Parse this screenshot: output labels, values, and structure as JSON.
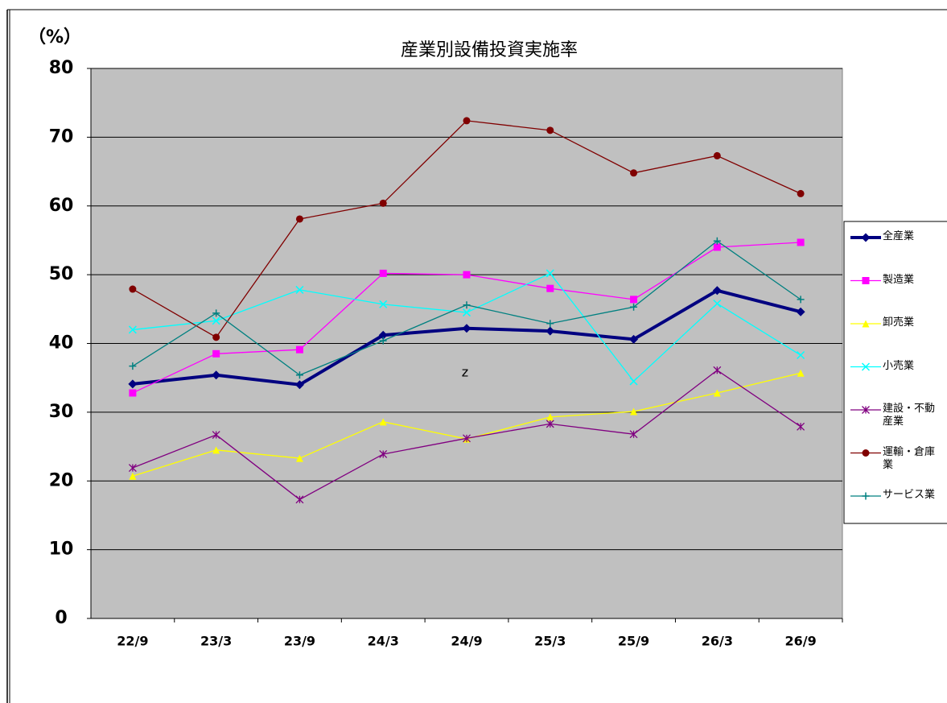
{
  "chart_data": {
    "type": "line",
    "title": "産業別設備投資実施率",
    "y_label": "（%）",
    "annotation": "z",
    "categories": [
      "22/9",
      "23/3",
      "23/9",
      "24/3",
      "24/9",
      "25/3",
      "25/9",
      "26/3",
      "26/9"
    ],
    "ylim": [
      0,
      80
    ],
    "yticks": [
      0,
      10,
      20,
      30,
      40,
      50,
      60,
      70,
      80
    ],
    "grid": true,
    "legend": "right",
    "series": [
      {
        "name": "全産業",
        "color": "#000080",
        "marker": "diamond",
        "line_width": 4,
        "values": [
          34.1,
          35.4,
          34.0,
          41.2,
          42.2,
          41.8,
          40.6,
          47.7,
          44.6
        ]
      },
      {
        "name": "製造業",
        "color": "#ff00ff",
        "marker": "square",
        "line_width": 1.3,
        "values": [
          32.8,
          38.5,
          39.1,
          50.2,
          50.0,
          48.0,
          46.4,
          54.0,
          54.7
        ]
      },
      {
        "name": "卸売業",
        "color": "#ffff00",
        "marker": "triangle",
        "line_width": 1.3,
        "values": [
          20.7,
          24.5,
          23.3,
          28.6,
          26.1,
          29.3,
          30.1,
          32.8,
          35.7
        ]
      },
      {
        "name": "小売業",
        "color": "#00ffff",
        "marker": "x",
        "line_width": 1.3,
        "values": [
          42.0,
          43.3,
          47.8,
          45.7,
          44.5,
          50.2,
          34.5,
          45.8,
          38.3
        ]
      },
      {
        "name": "建設・不動産業",
        "color": "#800080",
        "marker": "asterisk",
        "line_width": 1.3,
        "values": [
          21.9,
          26.7,
          17.3,
          23.9,
          26.2,
          28.3,
          26.8,
          36.1,
          27.9
        ]
      },
      {
        "name": "運輸・倉庫業",
        "color": "#800000",
        "marker": "circle",
        "line_width": 1.3,
        "values": [
          47.9,
          40.9,
          58.1,
          60.4,
          72.4,
          71.0,
          64.8,
          67.3,
          61.8
        ]
      },
      {
        "name": "サービス業",
        "color": "#008080",
        "marker": "plus",
        "line_width": 1.3,
        "values": [
          36.7,
          44.4,
          35.4,
          40.4,
          45.6,
          42.9,
          45.3,
          54.9,
          46.4
        ]
      }
    ]
  }
}
